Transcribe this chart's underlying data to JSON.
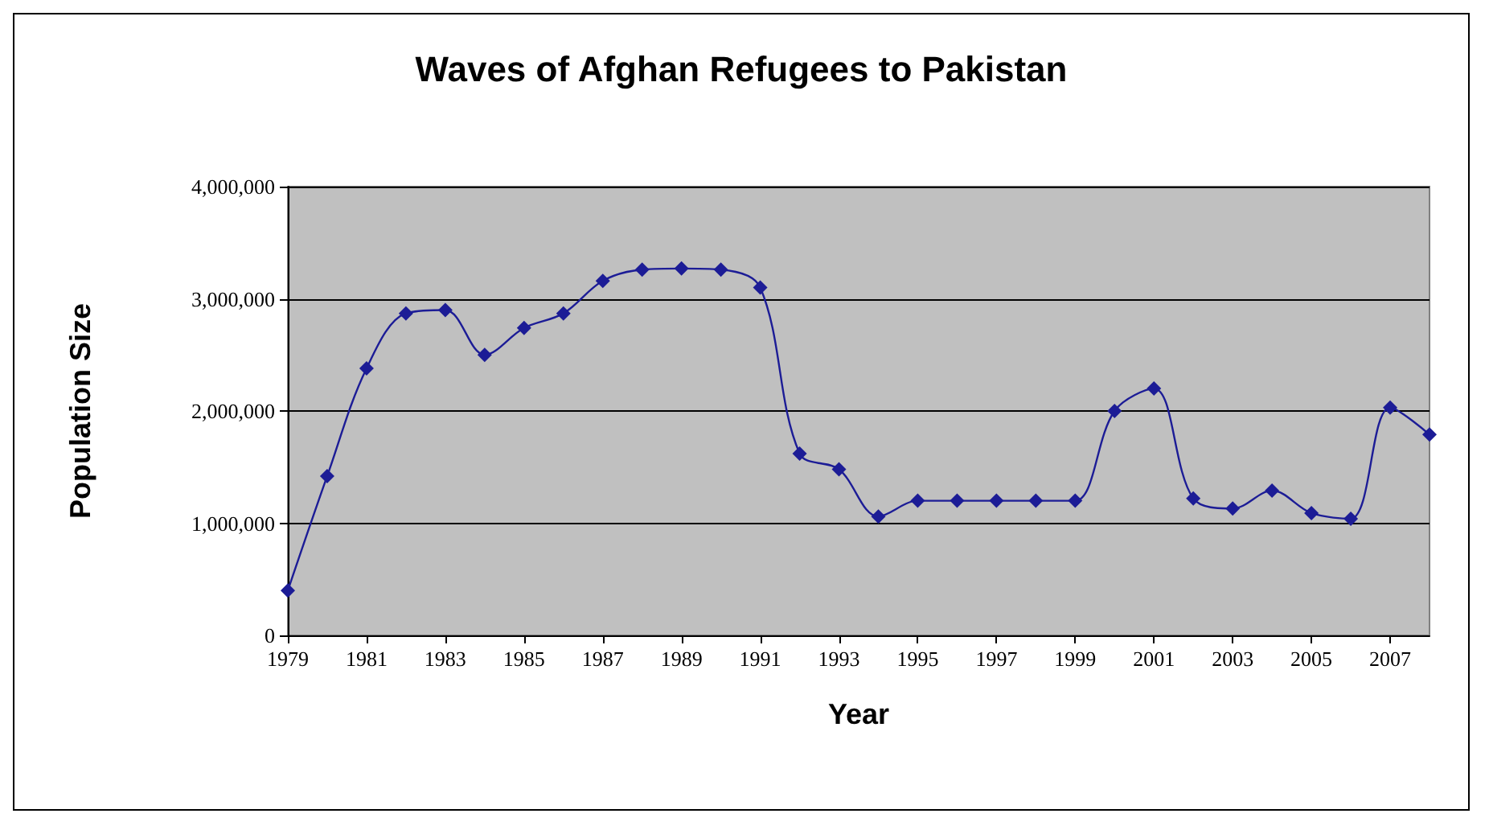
{
  "chart_data": {
    "type": "line",
    "title": "Waves of Afghan Refugees to Pakistan",
    "xlabel": "Year",
    "ylabel": "Population Size",
    "x": [
      1979,
      1980,
      1981,
      1982,
      1983,
      1984,
      1985,
      1986,
      1987,
      1988,
      1989,
      1990,
      1991,
      1992,
      1993,
      1994,
      1995,
      1996,
      1997,
      1998,
      1999,
      2000,
      2001,
      2002,
      2003,
      2004,
      2005,
      2006,
      2007,
      2008
    ],
    "series": [
      {
        "color": "#1c1c96",
        "values": [
          400000,
          1420000,
          2380000,
          2870000,
          2900000,
          2500000,
          2740000,
          2870000,
          3160000,
          3260000,
          3270000,
          3260000,
          3100000,
          1620000,
          1480000,
          1060000,
          1200000,
          1200000,
          1200000,
          1200000,
          1200000,
          2000000,
          2200000,
          1220000,
          1130000,
          1290000,
          1090000,
          1040000,
          2030000,
          1790000
        ]
      }
    ],
    "xlim": [
      1979,
      2008
    ],
    "xticks": [
      1979,
      1981,
      1983,
      1985,
      1987,
      1989,
      1991,
      1993,
      1995,
      1997,
      1999,
      2001,
      2003,
      2005,
      2007
    ],
    "ylim": [
      0,
      4000000
    ],
    "yticks": [
      0,
      {
        "value": 1000000,
        "label": "1,000,000"
      },
      {
        "value": 2000000,
        "label": "2,000,000"
      },
      {
        "value": 3000000,
        "label": "3,000,000"
      },
      {
        "value": 4000000,
        "label": "4,000,000"
      }
    ],
    "grid": "y",
    "marker": "diamond",
    "line_style": "solid"
  }
}
